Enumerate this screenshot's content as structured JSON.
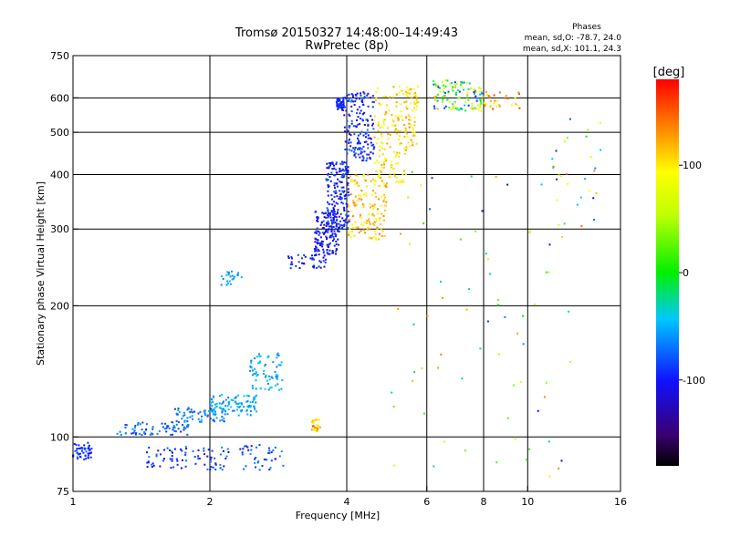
{
  "chart_data": {
    "type": "scatter",
    "title": "Tromsø 20150327 14:48:00–14:49:43",
    "subtitle": "RwPretec (8p)",
    "xlabel": "Frequency [MHz]",
    "ylabel": "Stationary phase Virtual Height [km]",
    "x_scale": "log",
    "y_scale": "log",
    "xlim": [
      1,
      16
    ],
    "ylim": [
      75,
      750
    ],
    "x_ticks": [
      {
        "value": 1,
        "label": "1"
      },
      {
        "value": 2,
        "label": "2"
      },
      {
        "value": 4,
        "label": "4"
      },
      {
        "value": 6,
        "label": "6"
      },
      {
        "value": 8,
        "label": "8"
      },
      {
        "value": 10,
        "label": "10"
      },
      {
        "value": 16,
        "label": "16"
      }
    ],
    "y_ticks": [
      {
        "value": 75,
        "label": "75"
      },
      {
        "value": 100,
        "label": "100"
      },
      {
        "value": 200,
        "label": "200"
      },
      {
        "value": 300,
        "label": "300"
      },
      {
        "value": 400,
        "label": "400"
      },
      {
        "value": 500,
        "label": "500"
      },
      {
        "value": 600,
        "label": "600"
      },
      {
        "value": 750,
        "label": "750"
      }
    ],
    "grid_x": [
      2,
      4,
      6,
      8,
      10
    ],
    "grid_y": [
      100,
      200,
      300,
      400,
      500,
      600
    ],
    "phases": {
      "heading": "Phases",
      "line_o": "mean, sd,O: -78.7, 24.0",
      "line_x": "mean, sd,X: 101.1, 24.3"
    },
    "colorbar": {
      "label": "[deg]",
      "range": [
        -180,
        180
      ],
      "ticks": [
        {
          "value": 100,
          "label": "100"
        },
        {
          "value": 0,
          "label": "0"
        },
        {
          "value": -100,
          "label": "-100"
        }
      ],
      "colormap": "rainbow (black-violet-blue-cyan-green-yellow-red)"
    },
    "clusters": [
      {
        "n": 50,
        "f": [
          1.0,
          1.1
        ],
        "h": [
          88,
          97
        ],
        "ph": [
          -115,
          -70
        ]
      },
      {
        "n": 70,
        "f": [
          1.25,
          1.8
        ],
        "h": [
          101,
          108
        ],
        "ph": [
          -95,
          -60
        ]
      },
      {
        "n": 80,
        "f": [
          1.45,
          2.2
        ],
        "h": [
          84,
          95
        ],
        "ph": [
          -120,
          -60
        ]
      },
      {
        "n": 70,
        "f": [
          1.65,
          2.2
        ],
        "h": [
          108,
          117
        ],
        "ph": [
          -85,
          -50
        ]
      },
      {
        "n": 90,
        "f": [
          2.0,
          2.55
        ],
        "h": [
          112,
          125
        ],
        "ph": [
          -70,
          -40
        ]
      },
      {
        "n": 70,
        "f": [
          2.45,
          2.9
        ],
        "h": [
          128,
          156
        ],
        "ph": [
          -70,
          -35
        ]
      },
      {
        "n": 40,
        "f": [
          2.3,
          2.9
        ],
        "h": [
          84,
          96
        ],
        "ph": [
          -110,
          -60
        ]
      },
      {
        "n": 25,
        "f": [
          2.12,
          2.35
        ],
        "h": [
          223,
          240
        ],
        "ph": [
          -70,
          -45
        ]
      },
      {
        "n": 30,
        "f": [
          3.35,
          3.5
        ],
        "h": [
          103,
          110
        ],
        "ph": [
          80,
          160
        ]
      },
      {
        "n": 40,
        "f": [
          2.95,
          3.6
        ],
        "h": [
          244,
          262
        ],
        "ph": [
          -120,
          -80
        ]
      },
      {
        "n": 160,
        "f": [
          3.4,
          3.85
        ],
        "h": [
          262,
          330
        ],
        "ph": [
          -125,
          -80
        ]
      },
      {
        "n": 180,
        "f": [
          3.6,
          4.05
        ],
        "h": [
          300,
          430
        ],
        "ph": [
          -125,
          -70
        ]
      },
      {
        "n": 160,
        "f": [
          3.95,
          4.6
        ],
        "h": [
          430,
          620
        ],
        "ph": [
          -125,
          -70
        ]
      },
      {
        "n": 50,
        "f": [
          3.8,
          3.95
        ],
        "h": [
          560,
          600
        ],
        "ph": [
          -110,
          -80
        ]
      },
      {
        "n": 140,
        "f": [
          4.0,
          4.9
        ],
        "h": [
          283,
          400
        ],
        "ph": [
          80,
          140
        ]
      },
      {
        "n": 140,
        "f": [
          4.6,
          5.4
        ],
        "h": [
          380,
          640
        ],
        "ph": [
          75,
          130
        ]
      },
      {
        "n": 60,
        "f": [
          5.4,
          5.75
        ],
        "h": [
          460,
          640
        ],
        "ph": [
          80,
          140
        ]
      },
      {
        "n": 120,
        "f": [
          6.2,
          8.0
        ],
        "h": [
          560,
          660
        ],
        "ph": [
          -110,
          130
        ]
      },
      {
        "n": 30,
        "f": [
          8.0,
          9.6
        ],
        "h": [
          560,
          620
        ],
        "ph": [
          80,
          160
        ]
      },
      {
        "n": 70,
        "f": [
          5.0,
          13.0
        ],
        "h": [
          80,
          420
        ],
        "ph": [
          -120,
          140
        ]
      },
      {
        "n": 30,
        "f": [
          11.3,
          14.5
        ],
        "h": [
          300,
          560
        ],
        "ph": [
          -110,
          150
        ]
      }
    ]
  }
}
